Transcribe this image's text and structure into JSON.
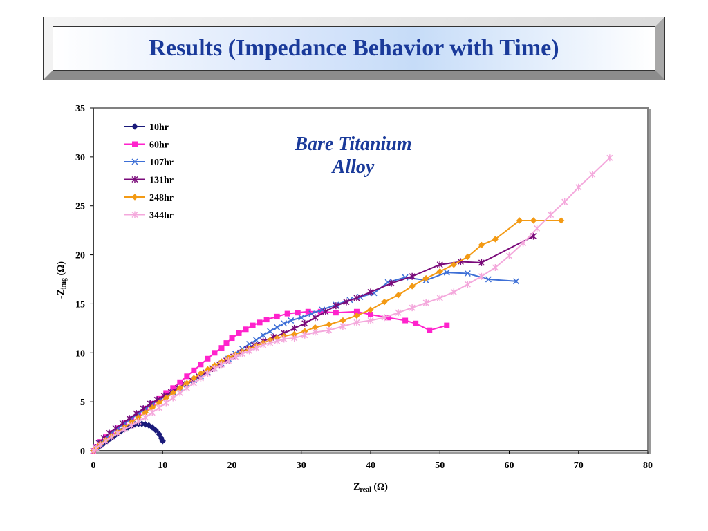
{
  "slide": {
    "title": "Results (Impedance Behavior with Time)"
  },
  "chart_data": {
    "type": "line",
    "annotation": [
      "Bare Titanium",
      "Alloy"
    ],
    "xlabel": {
      "main": "Z",
      "sub": "real",
      "unit": " (Ω)"
    },
    "ylabel": {
      "main": "-Z",
      "sub": "img",
      "unit": " (Ω)"
    },
    "xlim": [
      0,
      80
    ],
    "ylim": [
      0,
      35
    ],
    "xticks": [
      0,
      10,
      20,
      30,
      40,
      50,
      60,
      70,
      80
    ],
    "yticks": [
      0,
      5,
      10,
      15,
      20,
      25,
      30,
      35
    ],
    "legend_position": "top-left",
    "grid": false,
    "series": [
      {
        "name": "10hr",
        "color": "#1a1a7a",
        "marker": "diamond",
        "points": [
          [
            0,
            0
          ],
          [
            0.3,
            0.15
          ],
          [
            0.6,
            0.3
          ],
          [
            1,
            0.5
          ],
          [
            1.5,
            0.75
          ],
          [
            2,
            1
          ],
          [
            2.5,
            1.25
          ],
          [
            3,
            1.5
          ],
          [
            3.5,
            1.75
          ],
          [
            4,
            2
          ],
          [
            4.5,
            2.2
          ],
          [
            5,
            2.4
          ],
          [
            5.5,
            2.55
          ],
          [
            6,
            2.7
          ],
          [
            6.5,
            2.75
          ],
          [
            7,
            2.75
          ],
          [
            7.5,
            2.7
          ],
          [
            8,
            2.6
          ],
          [
            8.5,
            2.4
          ],
          [
            9,
            2.1
          ],
          [
            9.5,
            1.7
          ],
          [
            9.8,
            1.3
          ],
          [
            10,
            1
          ]
        ]
      },
      {
        "name": "60hr",
        "color": "#ff22cc",
        "marker": "square",
        "points": [
          [
            0,
            0
          ],
          [
            0.4,
            0.4
          ],
          [
            1,
            0.9
          ],
          [
            1.8,
            1.4
          ],
          [
            2.6,
            1.8
          ],
          [
            3.5,
            2.3
          ],
          [
            4.5,
            2.8
          ],
          [
            5.5,
            3.3
          ],
          [
            6.5,
            3.8
          ],
          [
            7.5,
            4.3
          ],
          [
            8.5,
            4.8
          ],
          [
            9.5,
            5.3
          ],
          [
            10.5,
            5.9
          ],
          [
            11.5,
            6.4
          ],
          [
            12.5,
            7
          ],
          [
            13.5,
            7.6
          ],
          [
            14.5,
            8.2
          ],
          [
            15.5,
            8.8
          ],
          [
            16.5,
            9.4
          ],
          [
            17.5,
            10
          ],
          [
            18.5,
            10.5
          ],
          [
            19.2,
            11
          ],
          [
            20,
            11.5
          ],
          [
            21,
            12
          ],
          [
            22,
            12.4
          ],
          [
            23,
            12.8
          ],
          [
            24,
            13.1
          ],
          [
            25,
            13.4
          ],
          [
            26.5,
            13.7
          ],
          [
            28,
            14
          ],
          [
            29.5,
            14.1
          ],
          [
            31,
            14.2
          ],
          [
            32.8,
            14.2
          ],
          [
            35,
            14.1
          ],
          [
            38,
            14.2
          ],
          [
            40,
            13.9
          ],
          [
            42.5,
            13.6
          ],
          [
            45,
            13.3
          ],
          [
            46.5,
            13
          ],
          [
            48.5,
            12.3
          ],
          [
            51,
            12.8
          ]
        ]
      },
      {
        "name": "107hr",
        "color": "#3d6fd6",
        "marker": "x",
        "points": [
          [
            0,
            0
          ],
          [
            0.4,
            0.35
          ],
          [
            1,
            0.8
          ],
          [
            1.8,
            1.3
          ],
          [
            2.6,
            1.8
          ],
          [
            3.5,
            2.3
          ],
          [
            4.5,
            2.8
          ],
          [
            5.5,
            3.3
          ],
          [
            6.5,
            3.8
          ],
          [
            7.5,
            4.3
          ],
          [
            8.5,
            4.8
          ],
          [
            9.5,
            5.2
          ],
          [
            10.5,
            5.6
          ],
          [
            11.5,
            6
          ],
          [
            12.5,
            6.4
          ],
          [
            13.5,
            6.8
          ],
          [
            14.5,
            7.2
          ],
          [
            15.5,
            7.6
          ],
          [
            16.5,
            8
          ],
          [
            17.5,
            8.4
          ],
          [
            18.5,
            8.9
          ],
          [
            19.5,
            9.4
          ],
          [
            20.5,
            9.9
          ],
          [
            21.5,
            10.4
          ],
          [
            22.5,
            10.9
          ],
          [
            23.5,
            11.3
          ],
          [
            24.5,
            11.8
          ],
          [
            25.5,
            12.2
          ],
          [
            26.5,
            12.6
          ],
          [
            27.5,
            13
          ],
          [
            28.5,
            13.3
          ],
          [
            30,
            13.6
          ],
          [
            31.5,
            14
          ],
          [
            33,
            14.4
          ],
          [
            35,
            14.9
          ],
          [
            37,
            15.4
          ],
          [
            38.5,
            15.7
          ],
          [
            40.5,
            16.1
          ],
          [
            42.5,
            17.2
          ],
          [
            45,
            17.7
          ],
          [
            48,
            17.4
          ],
          [
            51,
            18.2
          ],
          [
            54,
            18.1
          ],
          [
            57,
            17.5
          ],
          [
            61,
            17.3
          ]
        ]
      },
      {
        "name": "131hr",
        "color": "#7a0a7a",
        "marker": "asterisk",
        "points": [
          [
            0,
            0
          ],
          [
            0.3,
            0.35
          ],
          [
            0.8,
            0.8
          ],
          [
            1.5,
            1.3
          ],
          [
            2.3,
            1.8
          ],
          [
            3.2,
            2.3
          ],
          [
            4.2,
            2.8
          ],
          [
            5.2,
            3.3
          ],
          [
            6.2,
            3.8
          ],
          [
            7.2,
            4.3
          ],
          [
            8.2,
            4.8
          ],
          [
            9.2,
            5.2
          ],
          [
            10.2,
            5.6
          ],
          [
            11.2,
            6
          ],
          [
            12.2,
            6.4
          ],
          [
            13.2,
            6.8
          ],
          [
            14.2,
            7.2
          ],
          [
            15.2,
            7.6
          ],
          [
            16.2,
            8
          ],
          [
            17.2,
            8.4
          ],
          [
            18.2,
            8.8
          ],
          [
            19.2,
            9.2
          ],
          [
            20.2,
            9.6
          ],
          [
            21.2,
            10
          ],
          [
            22.2,
            10.4
          ],
          [
            23.2,
            10.8
          ],
          [
            24.5,
            11.2
          ],
          [
            26,
            11.6
          ],
          [
            27.5,
            12
          ],
          [
            29,
            12.5
          ],
          [
            30.5,
            13
          ],
          [
            32,
            13.6
          ],
          [
            33.5,
            14.2
          ],
          [
            35,
            14.8
          ],
          [
            36.5,
            15.2
          ],
          [
            38,
            15.6
          ],
          [
            40,
            16.2
          ],
          [
            43,
            17.1
          ],
          [
            46,
            17.8
          ],
          [
            50,
            19
          ],
          [
            53,
            19.3
          ],
          [
            56,
            19.2
          ],
          [
            63.5,
            21.9
          ]
        ]
      },
      {
        "name": "248hr",
        "color": "#f39a14",
        "marker": "diamond",
        "points": [
          [
            0,
            0
          ],
          [
            0.4,
            0.3
          ],
          [
            1,
            0.7
          ],
          [
            1.8,
            1.1
          ],
          [
            2.6,
            1.5
          ],
          [
            3.5,
            1.9
          ],
          [
            4.5,
            2.4
          ],
          [
            5.5,
            2.9
          ],
          [
            6.5,
            3.4
          ],
          [
            7.5,
            3.9
          ],
          [
            8.5,
            4.4
          ],
          [
            9.5,
            4.9
          ],
          [
            10.5,
            5.4
          ],
          [
            11.5,
            5.9
          ],
          [
            12.5,
            6.4
          ],
          [
            13.5,
            6.9
          ],
          [
            14.5,
            7.4
          ],
          [
            15.5,
            7.9
          ],
          [
            16.5,
            8.3
          ],
          [
            17.5,
            8.7
          ],
          [
            18.5,
            9.1
          ],
          [
            19.5,
            9.5
          ],
          [
            20.5,
            9.8
          ],
          [
            21.5,
            10.1
          ],
          [
            22.5,
            10.4
          ],
          [
            23.5,
            10.7
          ],
          [
            24.5,
            11
          ],
          [
            25.5,
            11.3
          ],
          [
            26.5,
            11.5
          ],
          [
            27.5,
            11.7
          ],
          [
            29,
            11.9
          ],
          [
            30.5,
            12.2
          ],
          [
            32,
            12.6
          ],
          [
            34,
            12.9
          ],
          [
            36,
            13.3
          ],
          [
            38,
            13.8
          ],
          [
            40,
            14.4
          ],
          [
            42,
            15.2
          ],
          [
            44,
            15.9
          ],
          [
            46,
            16.8
          ],
          [
            48,
            17.6
          ],
          [
            50,
            18.3
          ],
          [
            52,
            19
          ],
          [
            54,
            19.8
          ],
          [
            56,
            21
          ],
          [
            58,
            21.6
          ],
          [
            61.5,
            23.5
          ],
          [
            63.5,
            23.5
          ],
          [
            67.5,
            23.5
          ]
        ]
      },
      {
        "name": "344hr",
        "color": "#f4a8dc",
        "marker": "asterisk",
        "points": [
          [
            0,
            0
          ],
          [
            0.4,
            0.25
          ],
          [
            1,
            0.6
          ],
          [
            1.8,
            1
          ],
          [
            2.6,
            1.4
          ],
          [
            3.5,
            1.8
          ],
          [
            4.5,
            2.2
          ],
          [
            5.5,
            2.6
          ],
          [
            6.5,
            3
          ],
          [
            7.5,
            3.4
          ],
          [
            8.5,
            3.9
          ],
          [
            9.5,
            4.4
          ],
          [
            10.5,
            4.9
          ],
          [
            11.5,
            5.4
          ],
          [
            12.5,
            5.9
          ],
          [
            13.5,
            6.4
          ],
          [
            14.5,
            6.9
          ],
          [
            15.5,
            7.4
          ],
          [
            16.5,
            7.9
          ],
          [
            17.5,
            8.4
          ],
          [
            18.5,
            8.8
          ],
          [
            19.5,
            9.2
          ],
          [
            20.5,
            9.6
          ],
          [
            21.5,
            9.9
          ],
          [
            22.5,
            10.2
          ],
          [
            23.5,
            10.5
          ],
          [
            24.5,
            10.8
          ],
          [
            25.5,
            11
          ],
          [
            26.5,
            11.2
          ],
          [
            27.5,
            11.4
          ],
          [
            29,
            11.5
          ],
          [
            30.5,
            11.8
          ],
          [
            32,
            12.1
          ],
          [
            34,
            12.3
          ],
          [
            36,
            12.7
          ],
          [
            38,
            13.1
          ],
          [
            40,
            13.3
          ],
          [
            42,
            13.6
          ],
          [
            44,
            14.1
          ],
          [
            46,
            14.6
          ],
          [
            48,
            15.1
          ],
          [
            50,
            15.6
          ],
          [
            52,
            16.2
          ],
          [
            54,
            17
          ],
          [
            56,
            17.8
          ],
          [
            58,
            18.7
          ],
          [
            60,
            19.9
          ],
          [
            62,
            21.2
          ],
          [
            64,
            22.7
          ],
          [
            66,
            24.1
          ],
          [
            68,
            25.4
          ],
          [
            70,
            26.9
          ],
          [
            72,
            28.2
          ],
          [
            74.5,
            29.9
          ]
        ]
      }
    ]
  }
}
